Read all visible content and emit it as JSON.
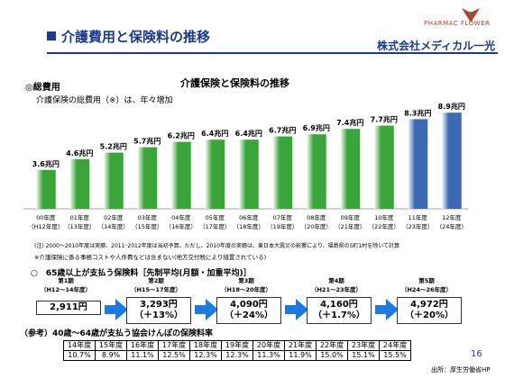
{
  "header": {
    "title": "介護費用と保険料の推移",
    "company": "株式会社メディカル一光",
    "logo_text": "PHARMAC FLOWER"
  },
  "section1": {
    "label": "◎総費用",
    "subtitle": "介護保険の総費用（※）は、年々増加"
  },
  "chart_data": {
    "type": "bar",
    "title": "介護保険と保険料の推移",
    "categories": [
      "00年度\n（H12年度）",
      "01年度\n（13年度）",
      "02年度\n（14年度）",
      "03年度\n（15年度）",
      "04年度\n（16年度）",
      "05年度\n（17年度）",
      "06年度\n（18年度）",
      "07年度\n（19年度）",
      "08年度\n（20年度）",
      "09年度\n（21年度）",
      "10年度\n（22年度）",
      "11年度\n（23年度）",
      "12年度\n（24年度）"
    ],
    "values": [
      3.6,
      4.6,
      5.2,
      5.7,
      6.2,
      6.4,
      6.4,
      6.7,
      6.9,
      7.4,
      7.7,
      8.3,
      8.9
    ],
    "value_labels": [
      "3.6兆円",
      "4.6兆円",
      "5.2兆円",
      "5.7兆円",
      "6.2兆円",
      "6.4兆円",
      "6.4兆円",
      "6.7兆円",
      "6.9兆円",
      "7.4兆円",
      "7.7兆円",
      "8.3兆円",
      "8.9兆円"
    ],
    "ylim": [
      0,
      10
    ],
    "colors": {
      "actual": "#3aa63a",
      "budget": "#3d6ab5"
    }
  },
  "notes": {
    "note1": "(注) 2000～2010年度は実績、2011･2012年度は当初予算。ただし、2010年度の実績は、東日本大震災の影響により、福島県の5町1村を除いて計算",
    "note2": "※介護保険に係る事務コストや人件費などは含まない(地方交付税により措置されている)"
  },
  "section2": {
    "label": "○　65歳以上が支払う保険料［先制平均(月額・加重平均)］",
    "periods": [
      {
        "label": "第1期\n（H12～14年度）",
        "value": "2,911円",
        "change": ""
      },
      {
        "label": "第2期\n（H15～17年度）",
        "value": "3,293円",
        "change": "（＋13%）"
      },
      {
        "label": "第3期\n（H18～20年度）",
        "value": "4,090円",
        "change": "（＋24%）"
      },
      {
        "label": "第4期\n（H21～23年度）",
        "value": "4,160円",
        "change": "（＋1.7%）"
      },
      {
        "label": "第5期\n（H24～26年度）",
        "value": "4,972円",
        "change": "（＋20%）"
      }
    ]
  },
  "section3": {
    "label": "（参考）40歳～64歳が支払う協会けんぽの保険料率",
    "years": [
      "14年度",
      "15年度",
      "16年度",
      "17年度",
      "18年度",
      "19年度",
      "20年度",
      "21年度",
      "22年度",
      "23年度",
      "24年度"
    ],
    "rates": [
      "10.7%",
      "8.9%",
      "11.1%",
      "12.5%",
      "12.3%",
      "12.3%",
      "11.3%",
      "11.9%",
      "15.0%",
      "15.1%",
      "15.5%"
    ]
  },
  "footer": {
    "page": "16",
    "source": "出所：厚生労働省HP"
  }
}
